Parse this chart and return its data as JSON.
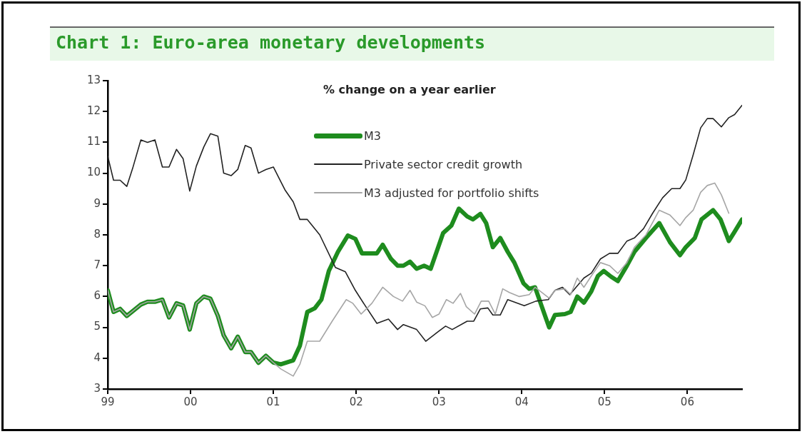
{
  "chart_data": {
    "type": "line",
    "title": "Chart 1: Euro-area monetary developments",
    "subtitle": "% change on a year earlier",
    "xlim": [
      1999,
      2006.66
    ],
    "xticks": [
      {
        "value": 1999,
        "label": "99"
      },
      {
        "value": 2000,
        "label": "00"
      },
      {
        "value": 2001,
        "label": "01"
      },
      {
        "value": 2002,
        "label": "02"
      },
      {
        "value": 2003,
        "label": "03"
      },
      {
        "value": 2004,
        "label": "04"
      },
      {
        "value": 2005,
        "label": "05"
      },
      {
        "value": 2006,
        "label": "06"
      }
    ],
    "ylim": [
      3,
      13
    ],
    "yticks": [
      3,
      4,
      5,
      6,
      7,
      8,
      9,
      10,
      11,
      12,
      13
    ],
    "grid": false,
    "legend": "top",
    "series": [
      {
        "name": "M3",
        "color": "#1e8c1e",
        "x": [
          1999.0,
          1999.07,
          1999.15,
          1999.23,
          1999.4,
          1999.48,
          1999.57,
          1999.66,
          1999.74,
          1999.83,
          1999.91,
          1999.99,
          2000.07,
          2000.16,
          2000.24,
          2000.33,
          2000.4,
          2000.49,
          2000.57,
          2000.66,
          2000.73,
          2000.82,
          2000.91,
          2001.0,
          2001.09,
          2001.24,
          2001.32,
          2001.41,
          2001.5,
          2001.58,
          2001.67,
          2001.78,
          2001.9,
          2001.99,
          2002.07,
          2002.25,
          2002.32,
          2002.42,
          2002.5,
          2002.57,
          2002.65,
          2002.73,
          2002.82,
          2002.9,
          2003.05,
          2003.15,
          2003.24,
          2003.34,
          2003.41,
          2003.5,
          2003.57,
          2003.65,
          2003.74,
          2003.83,
          2003.91,
          2004.02,
          2004.09,
          2004.16,
          2004.33,
          2004.4,
          2004.52,
          2004.59,
          2004.67,
          2004.75,
          2004.84,
          2004.92,
          2004.99,
          2005.08,
          2005.16,
          2005.27,
          2005.36,
          2005.5,
          2005.66,
          2005.79,
          2005.91,
          2005.98,
          2006.09,
          2006.17,
          2006.31,
          2006.4,
          2006.5,
          2006.57,
          2006.66
        ],
        "values": [
          6.2,
          5.5,
          5.6,
          5.37,
          5.74,
          5.83,
          5.83,
          5.9,
          5.32,
          5.78,
          5.71,
          4.93,
          5.78,
          6.0,
          5.93,
          5.37,
          4.74,
          4.32,
          4.7,
          4.2,
          4.2,
          3.85,
          4.08,
          3.86,
          3.8,
          3.93,
          4.4,
          5.5,
          5.62,
          5.9,
          6.83,
          7.45,
          7.98,
          7.87,
          7.4,
          7.4,
          7.68,
          7.22,
          7.0,
          7.0,
          7.13,
          6.9,
          7.0,
          6.9,
          8.06,
          8.3,
          8.85,
          8.6,
          8.5,
          8.68,
          8.38,
          7.6,
          7.9,
          7.45,
          7.1,
          6.43,
          6.25,
          6.3,
          5.0,
          5.4,
          5.43,
          5.5,
          6.0,
          5.8,
          6.17,
          6.67,
          6.83,
          6.64,
          6.5,
          7.0,
          7.45,
          7.9,
          8.38,
          7.76,
          7.34,
          7.6,
          7.9,
          8.5,
          8.8,
          8.5,
          7.8,
          8.1,
          8.5
        ]
      },
      {
        "name": "Private sector credit growth",
        "color": "#222222",
        "x": [
          1999.0,
          1999.07,
          1999.15,
          1999.23,
          1999.3,
          1999.4,
          1999.48,
          1999.57,
          1999.66,
          1999.74,
          1999.83,
          1999.91,
          1999.99,
          2000.07,
          2000.16,
          2000.24,
          2000.33,
          2000.4,
          2000.49,
          2000.57,
          2000.66,
          2000.73,
          2000.82,
          2000.91,
          2001.0,
          2001.14,
          2001.24,
          2001.32,
          2001.41,
          2001.56,
          2001.75,
          2001.87,
          2001.99,
          2002.1,
          2002.25,
          2002.39,
          2002.5,
          2002.57,
          2002.73,
          2002.84,
          2002.99,
          2003.08,
          2003.16,
          2003.34,
          2003.42,
          2003.5,
          2003.59,
          2003.65,
          2003.74,
          2003.83,
          2004.03,
          2004.17,
          2004.32,
          2004.4,
          2004.49,
          2004.58,
          2004.75,
          2004.84,
          2004.95,
          2005.06,
          2005.16,
          2005.27,
          2005.36,
          2005.47,
          2005.58,
          2005.7,
          2005.81,
          2005.91,
          2005.98,
          2006.07,
          2006.16,
          2006.24,
          2006.31,
          2006.41,
          2006.5,
          2006.57,
          2006.66
        ],
        "values": [
          10.55,
          9.77,
          9.77,
          9.57,
          10.15,
          11.08,
          11.0,
          11.08,
          10.2,
          10.2,
          10.77,
          10.47,
          9.42,
          10.23,
          10.85,
          11.28,
          11.2,
          10.0,
          9.92,
          10.12,
          10.9,
          10.82,
          10.0,
          10.12,
          10.2,
          9.46,
          9.07,
          8.5,
          8.5,
          8.0,
          6.94,
          6.8,
          6.2,
          5.74,
          5.13,
          5.27,
          4.93,
          5.09,
          4.93,
          4.55,
          4.86,
          5.04,
          4.93,
          5.2,
          5.2,
          5.6,
          5.63,
          5.4,
          5.4,
          5.9,
          5.7,
          5.85,
          5.9,
          6.2,
          6.3,
          6.06,
          6.6,
          6.76,
          7.22,
          7.4,
          7.4,
          7.8,
          7.9,
          8.2,
          8.7,
          9.2,
          9.5,
          9.5,
          9.78,
          10.6,
          11.47,
          11.77,
          11.77,
          11.5,
          11.8,
          11.9,
          12.2
        ]
      },
      {
        "name": "M3 adjusted for portfolio shifts",
        "color": "#a6a6a6",
        "x": [
          1999.0,
          1999.07,
          1999.15,
          1999.23,
          1999.4,
          1999.48,
          1999.57,
          1999.66,
          1999.74,
          1999.83,
          1999.91,
          1999.99,
          2000.07,
          2000.16,
          2000.24,
          2000.33,
          2000.4,
          2000.49,
          2000.57,
          2000.66,
          2000.73,
          2000.82,
          2000.91,
          2001.0,
          2001.09,
          2001.24,
          2001.32,
          2001.41,
          2001.56,
          2001.71,
          2001.88,
          2001.96,
          2002.06,
          2002.19,
          2002.32,
          2002.45,
          2002.56,
          2002.65,
          2002.73,
          2002.83,
          2002.92,
          2003.0,
          2003.09,
          2003.17,
          2003.26,
          2003.33,
          2003.43,
          2003.51,
          2003.6,
          2003.68,
          2003.77,
          2003.85,
          2003.97,
          2004.09,
          2004.16,
          2004.33,
          2004.4,
          2004.52,
          2004.59,
          2004.67,
          2004.75,
          2004.84,
          2004.95,
          2005.06,
          2005.16,
          2005.27,
          2005.36,
          2005.5,
          2005.66,
          2005.79,
          2005.91,
          2005.98,
          2006.07,
          2006.16,
          2006.24,
          2006.33,
          2006.41,
          2006.5
        ],
        "values": [
          6.2,
          5.5,
          5.6,
          5.37,
          5.74,
          5.83,
          5.83,
          5.9,
          5.32,
          5.78,
          5.71,
          4.93,
          5.78,
          6.0,
          5.93,
          5.37,
          4.74,
          4.32,
          4.7,
          4.2,
          4.2,
          3.85,
          4.08,
          3.86,
          3.65,
          3.42,
          3.8,
          4.55,
          4.55,
          5.2,
          5.9,
          5.78,
          5.43,
          5.78,
          6.3,
          6.0,
          5.85,
          6.2,
          5.82,
          5.7,
          5.32,
          5.43,
          5.9,
          5.78,
          6.1,
          5.67,
          5.43,
          5.85,
          5.85,
          5.43,
          6.25,
          6.13,
          6.0,
          6.06,
          6.3,
          5.95,
          6.2,
          6.25,
          6.06,
          6.6,
          6.3,
          6.67,
          7.1,
          7.0,
          6.75,
          7.1,
          7.6,
          8.0,
          8.8,
          8.64,
          8.3,
          8.56,
          8.8,
          9.38,
          9.6,
          9.68,
          9.3,
          8.7
        ]
      }
    ]
  }
}
